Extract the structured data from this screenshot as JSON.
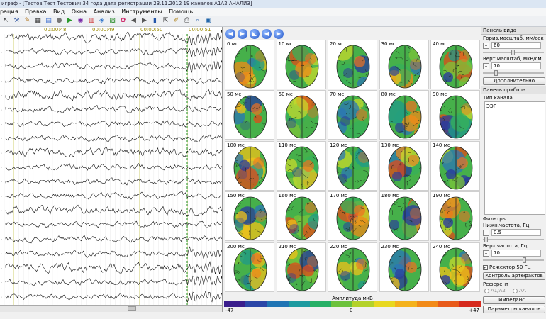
{
  "window": {
    "title": "играф - [Тестов Тест Тестович 34 года дата регистрации 23.11.2012 19 каналов A1A2 АНАЛИЗ]"
  },
  "menu": [
    "рация",
    "Правка",
    "Вид",
    "Окна",
    "Анализ",
    "Инструменты",
    "Помощь"
  ],
  "toolbar": [
    "arrow-icon",
    "tools-icon",
    "edit-icon",
    "grid-icon",
    "montage-icon",
    "record-icon",
    "play-icon",
    "marker-icon",
    "spectrum-icon",
    "map-icon",
    "chart-icon",
    "brain-icon",
    "left-icon",
    "right-icon",
    "stats-icon",
    "cursor-icon",
    "pen-icon",
    "print-icon",
    "zoom-icon",
    "save-icon"
  ],
  "eeg": {
    "time_labels": [
      "00:00:48",
      "00:00:49",
      "00:00:50",
      "00:00:51"
    ]
  },
  "maps": {
    "nav": [
      "◀",
      "▶",
      "◣",
      "◀",
      "▶"
    ],
    "cells": [
      {
        "label": "0 мс",
        "h": [
          [
            "#f07020",
            "#7030a0",
            "#2080a0",
            "#f0a030"
          ]
        ]
      },
      {
        "label": "10 мс"
      },
      {
        "label": "20 мс"
      },
      {
        "label": "30 мс"
      },
      {
        "label": "40 мс"
      },
      {
        "label": "50 мс"
      },
      {
        "label": "60 мс"
      },
      {
        "label": "70 мс"
      },
      {
        "label": "80 мс"
      },
      {
        "label": "90 мс"
      },
      {
        "label": "100 мс"
      },
      {
        "label": "110 мс"
      },
      {
        "label": "120 мс"
      },
      {
        "label": "130 мс"
      },
      {
        "label": "140 мс"
      },
      {
        "label": "150 мс"
      },
      {
        "label": "160 мс"
      },
      {
        "label": "170 мс"
      },
      {
        "label": "180 мс"
      },
      {
        "label": "190 мс"
      },
      {
        "label": "200 мс"
      },
      {
        "label": "210 мс"
      },
      {
        "label": "220 мс"
      },
      {
        "label": "230 мс"
      },
      {
        "label": "240 мс"
      }
    ],
    "colorbar": {
      "title": "Амплитуда мкВ",
      "min": "-47",
      "mid": "0",
      "max": "+47",
      "colors": [
        "#3a1d8c",
        "#2b46a8",
        "#1f74b4",
        "#1c9aa0",
        "#26b066",
        "#6cc23c",
        "#b4d22a",
        "#e8d820",
        "#f4b21c",
        "#f28a18",
        "#e85a1a",
        "#d62a1e"
      ]
    }
  },
  "panel": {
    "view_title": "Панель вида",
    "hscale_label": "Гориз.масштаб, мм/сек",
    "hscale_value": "60",
    "vscale_label": "Верт.масштаб, мкВ/см",
    "vscale_value": "70",
    "more_button": "Дополнительно",
    "device_title": "Панель прибора",
    "channel_type_label": "Тип канала",
    "channel_type_value": "ЭЭГ",
    "filters_label": "Фильтры",
    "lowfreq_label": "Нижн.частота, Гц",
    "lowfreq_value": "0.5",
    "highfreq_label": "Верх.частота, Гц",
    "highfreq_value": "70",
    "notch_label": "Режектор 50 Гц",
    "artifact_button": "Контроль артефактов",
    "reference_label": "Референт",
    "ref_options": [
      "A1/A2",
      "AA"
    ],
    "impedance_button": "Импеданс...",
    "channel_params_button": "Параметры каналов"
  }
}
